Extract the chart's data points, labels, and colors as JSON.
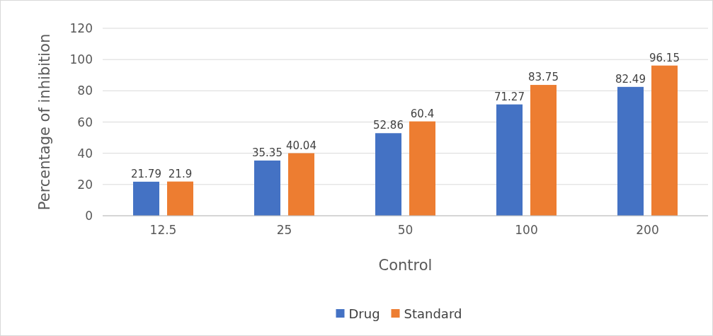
{
  "chart_data": {
    "type": "bar",
    "xlabel": "Control",
    "ylabel": "Percentage of inhibition",
    "categories": [
      "12.5",
      "25",
      "50",
      "100",
      "200"
    ],
    "series": [
      {
        "name": "Drug",
        "color": "#4472c4",
        "values": [
          21.79,
          35.35,
          52.86,
          71.27,
          82.49
        ]
      },
      {
        "name": "Standard",
        "color": "#ed7d31",
        "values": [
          21.9,
          40.04,
          60.4,
          83.75,
          96.15
        ]
      }
    ],
    "ylim": [
      0,
      120
    ],
    "yticks": [
      0,
      20,
      40,
      60,
      80,
      100,
      120
    ],
    "grid": "y",
    "legend": "bottom",
    "data_labels": true
  }
}
